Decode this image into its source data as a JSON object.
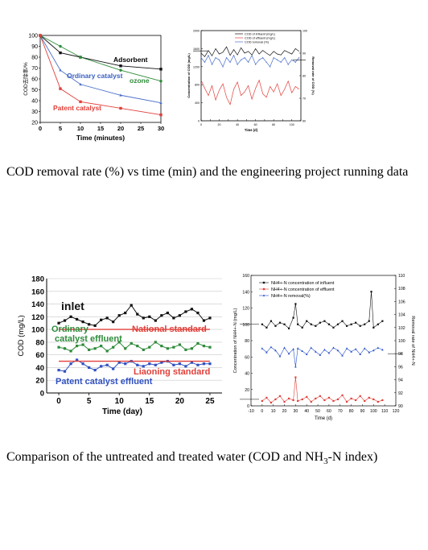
{
  "captions": {
    "top": "COD removal rate (%) vs time (min) and the engineering project running data",
    "bottom_pre": "Comparison of the untreated and treated water (COD and NH",
    "bottom_sub": "3",
    "bottom_post": "-N index)"
  },
  "chart_data": [
    {
      "type": "line",
      "xlabel": "Time (minutes)",
      "ylabel": "COD去除率/%",
      "xlim": [
        0,
        30
      ],
      "ylim": [
        20,
        100
      ],
      "xticks": [
        0,
        5,
        10,
        15,
        20,
        25,
        30
      ],
      "yticks": [
        20,
        30,
        40,
        50,
        60,
        70,
        80,
        90,
        100
      ],
      "grid": false,
      "series": [
        {
          "name": "Adsorbent",
          "color": "#111111",
          "marker": "square",
          "x": [
            0,
            5,
            10,
            20,
            30
          ],
          "y": [
            100,
            84,
            80,
            72,
            69
          ]
        },
        {
          "name": "ozone",
          "color": "#2e8b3a",
          "marker": "circle",
          "x": [
            0,
            5,
            10,
            20,
            30
          ],
          "y": [
            100,
            90,
            80,
            68,
            58
          ]
        },
        {
          "name": "Ordinary catalyst",
          "color": "#4a6fc9",
          "marker": "triangle",
          "x": [
            0,
            5,
            10,
            20,
            30
          ],
          "y": [
            100,
            68,
            55,
            45,
            38
          ]
        },
        {
          "name": "Patent catalyst",
          "color": "#e0403a",
          "marker": "square",
          "x": [
            0,
            5,
            10,
            20,
            30
          ],
          "y": [
            100,
            51,
            39,
            33,
            27
          ]
        }
      ]
    },
    {
      "type": "line",
      "xlabel": "Time (d)",
      "ylabel_left": "Concentration of COD (mg/L)",
      "ylabel_right": "Removal rate of COD (%)",
      "xlim": [
        0,
        110
      ],
      "ylim_left": [
        0,
        2000
      ],
      "ylim_right": [
        60,
        100
      ],
      "xticks": [
        0,
        10,
        20,
        30,
        40,
        50,
        60,
        70,
        80,
        90,
        100,
        110
      ],
      "yticks_left": [
        0,
        200,
        400,
        600,
        800,
        1000,
        1200,
        1400,
        1600,
        1800,
        2000
      ],
      "yticks_right": [
        60,
        70,
        80,
        90,
        100
      ],
      "grid": false,
      "series": [
        {
          "name": "COD of influent (mg/L)",
          "color": "#111111",
          "x": [
            0,
            4,
            8,
            12,
            16,
            20,
            24,
            28,
            32,
            36,
            40,
            44,
            48,
            52,
            56,
            60,
            64,
            68,
            72,
            76,
            80,
            84,
            88,
            92,
            96,
            100,
            104,
            108
          ],
          "y": [
            1500,
            1420,
            1560,
            1440,
            1600,
            1480,
            1520,
            1640,
            1450,
            1580,
            1460,
            1620,
            1500,
            1540,
            1460,
            1600,
            1480,
            1560,
            1500,
            1450,
            1540,
            1480,
            1460,
            1560,
            1520,
            1480,
            1600,
            1540
          ]
        },
        {
          "name": "COD of effluent (mg/L)",
          "color": "#e0403a",
          "x": [
            0,
            4,
            8,
            12,
            16,
            20,
            24,
            28,
            32,
            36,
            40,
            44,
            48,
            52,
            56,
            60,
            64,
            68,
            72,
            76,
            80,
            84,
            88,
            92,
            96,
            100,
            104,
            108
          ],
          "y": [
            900,
            720,
            560,
            780,
            460,
            680,
            820,
            520,
            360,
            700,
            860,
            560,
            640,
            780,
            480,
            720,
            900,
            600,
            520,
            760,
            640,
            820,
            560,
            700,
            880,
            620,
            760,
            700
          ]
        },
        {
          "name": "COD removal (%)",
          "color": "#4a6fc9",
          "x": [
            0,
            4,
            8,
            12,
            16,
            20,
            24,
            28,
            32,
            36,
            40,
            44,
            48,
            52,
            56,
            60,
            64,
            68,
            72,
            76,
            80,
            84,
            88,
            92,
            96,
            100,
            104,
            108
          ],
          "y": [
            88,
            86,
            89,
            85,
            88,
            87,
            84,
            88,
            86,
            89,
            85,
            87,
            88,
            86,
            89,
            85,
            87,
            88,
            86,
            84,
            88,
            87,
            86,
            88,
            85,
            87,
            86,
            88
          ]
        }
      ]
    },
    {
      "type": "line",
      "xlabel": "Time (day)",
      "ylabel": "COD (mg/L)",
      "xlim": [
        -2,
        27
      ],
      "ylim": [
        0,
        180
      ],
      "xticks": [
        0,
        5,
        10,
        15,
        20,
        25
      ],
      "yticks": [
        0,
        20,
        40,
        60,
        80,
        100,
        120,
        140,
        160,
        180
      ],
      "grid": true,
      "annotations": [
        {
          "text": "inlet",
          "color": "#111111"
        },
        {
          "text": "Ordinary",
          "color": "#2e8b3a"
        },
        {
          "text": "catalyst effluent",
          "color": "#2e8b3a"
        },
        {
          "text": "National standard",
          "color": "#e0403a"
        },
        {
          "text": "Liaoning standard",
          "color": "#e0403a"
        },
        {
          "text": "Patent catalyst effluent",
          "color": "#3050c0"
        }
      ],
      "series": [
        {
          "name": "inlet",
          "color": "#111111",
          "x": [
            0,
            1,
            2,
            3,
            4,
            5,
            6,
            7,
            8,
            9,
            10,
            11,
            12,
            13,
            14,
            15,
            16,
            17,
            18,
            19,
            20,
            21,
            22,
            23,
            24,
            25
          ],
          "y": [
            110,
            114,
            120,
            116,
            112,
            108,
            106,
            115,
            118,
            112,
            122,
            126,
            138,
            124,
            118,
            120,
            114,
            122,
            126,
            118,
            122,
            128,
            132,
            126,
            114,
            118
          ]
        },
        {
          "name": "Ordinary catalyst effluent",
          "color": "#2e8b3a",
          "x": [
            0,
            1,
            2,
            3,
            4,
            5,
            6,
            7,
            8,
            9,
            10,
            11,
            12,
            13,
            14,
            15,
            16,
            17,
            18,
            19,
            20,
            21,
            22,
            23,
            24,
            25
          ],
          "y": [
            72,
            70,
            66,
            74,
            76,
            68,
            70,
            74,
            66,
            72,
            80,
            70,
            78,
            74,
            68,
            72,
            80,
            74,
            70,
            72,
            76,
            68,
            70,
            78,
            74,
            72
          ]
        },
        {
          "name": "Patent catalyst effluent",
          "color": "#3050c0",
          "x": [
            0,
            1,
            2,
            3,
            4,
            5,
            6,
            7,
            8,
            9,
            10,
            11,
            12,
            13,
            14,
            15,
            16,
            17,
            18,
            19,
            20,
            21,
            22,
            23,
            24,
            25
          ],
          "y": [
            36,
            34,
            46,
            52,
            46,
            40,
            36,
            42,
            44,
            38,
            48,
            46,
            50,
            44,
            42,
            46,
            44,
            48,
            50,
            44,
            46,
            42,
            48,
            44,
            46,
            46
          ]
        },
        {
          "name": "National standard",
          "color": "#e0403a",
          "x": [
            0,
            25
          ],
          "y": [
            100,
            100
          ]
        },
        {
          "name": "Liaoning standard",
          "color": "#e0403a",
          "x": [
            0,
            25
          ],
          "y": [
            50,
            50
          ]
        }
      ]
    },
    {
      "type": "line",
      "xlabel": "Time (d)",
      "ylabel_left": "Concentration of NH4+-N (mg/L)",
      "ylabel_right": "Removal rate of NH4+-N",
      "xlim": [
        -10,
        120
      ],
      "ylim_left": [
        0,
        160
      ],
      "ylim_right": [
        90,
        110
      ],
      "xticks": [
        -10,
        0,
        10,
        20,
        30,
        40,
        50,
        60,
        70,
        80,
        90,
        100,
        110,
        120
      ],
      "yticks_left": [
        0,
        20,
        40,
        60,
        80,
        100,
        120,
        140,
        160
      ],
      "yticks_right": [
        90,
        92,
        94,
        96,
        98,
        100,
        102,
        104,
        106,
        108,
        110
      ],
      "grid": false,
      "legend": "top-left",
      "series": [
        {
          "name": "NH4+-N concentration of influent",
          "color": "#111111",
          "x": [
            0,
            4,
            8,
            12,
            16,
            20,
            24,
            28,
            30,
            32,
            36,
            40,
            44,
            48,
            52,
            56,
            60,
            64,
            68,
            72,
            76,
            80,
            84,
            88,
            92,
            96,
            98,
            100,
            104,
            108
          ],
          "y": [
            100,
            96,
            104,
            98,
            102,
            100,
            95,
            108,
            125,
            100,
            96,
            104,
            100,
            98,
            102,
            104,
            100,
            96,
            100,
            104,
            98,
            100,
            102,
            98,
            100,
            104,
            140,
            96,
            100,
            104
          ]
        },
        {
          "name": "NH4+-N concentration of effluent",
          "color": "#e0403a",
          "x": [
            0,
            4,
            8,
            12,
            16,
            20,
            24,
            28,
            30,
            32,
            36,
            40,
            44,
            48,
            52,
            56,
            60,
            64,
            68,
            72,
            76,
            80,
            84,
            88,
            92,
            96,
            100,
            104,
            108
          ],
          "y": [
            6,
            10,
            4,
            8,
            12,
            5,
            9,
            7,
            35,
            6,
            8,
            11,
            5,
            9,
            12,
            7,
            10,
            6,
            8,
            13,
            5,
            9,
            7,
            12,
            6,
            10,
            8,
            5,
            7
          ]
        },
        {
          "name": "NH4+-N removal(%)",
          "color": "#2850c8",
          "x": [
            0,
            4,
            8,
            12,
            16,
            20,
            24,
            28,
            30,
            32,
            36,
            40,
            44,
            48,
            52,
            56,
            60,
            64,
            68,
            72,
            76,
            80,
            84,
            88,
            92,
            96,
            100,
            104,
            108
          ],
          "y": [
            98.8,
            98.2,
            99.0,
            98.5,
            97.6,
            98.9,
            98.0,
            98.7,
            96.0,
            98.8,
            98.4,
            97.9,
            98.9,
            98.3,
            97.8,
            98.6,
            98.1,
            98.9,
            98.5,
            97.7,
            98.8,
            98.3,
            98.7,
            97.9,
            98.8,
            98.2,
            98.5,
            98.9,
            98.6
          ]
        }
      ]
    }
  ]
}
